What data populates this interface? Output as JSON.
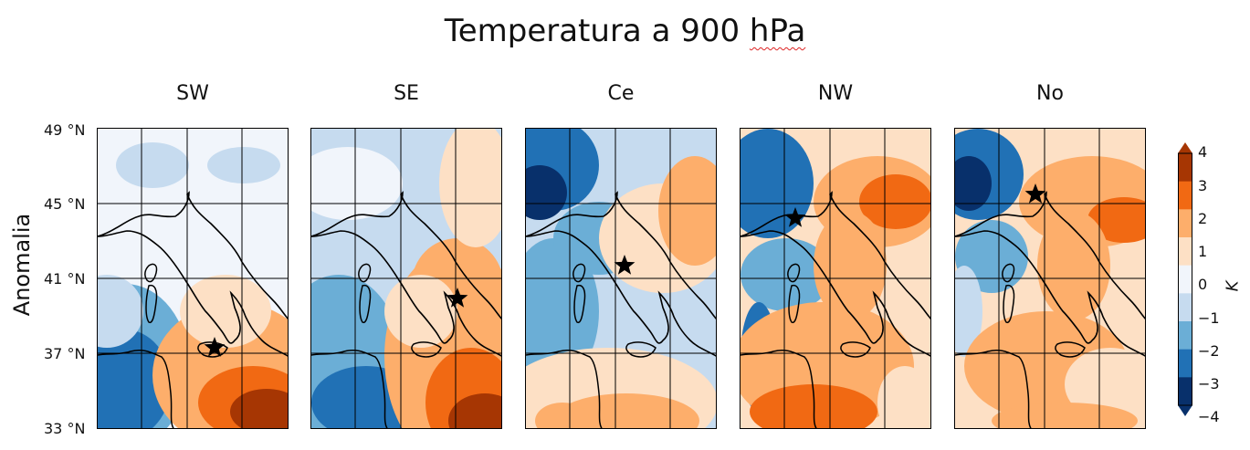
{
  "title_prefix": "Temperatura a 900 ",
  "title_unit": "hPa",
  "ylabel": "Anomalia",
  "lat_labels": [
    "49 °N",
    "45 °N",
    "41 °N",
    "37 °N",
    "33 °N"
  ],
  "colorbar": {
    "unit": "K",
    "ticks": [
      "4",
      "3",
      "2",
      "1",
      "0",
      "−1",
      "−2",
      "−3",
      "−4"
    ],
    "colors": [
      "#08306b",
      "#2171b5",
      "#6baed6",
      "#c6dbef",
      "#f1f5fb",
      "#fde0c5",
      "#fdae6b",
      "#f16913",
      "#a63603"
    ]
  },
  "panels": [
    {
      "label": "SW",
      "pattern": "sw"
    },
    {
      "label": "SE",
      "pattern": "se"
    },
    {
      "label": "Ce",
      "pattern": "ce"
    },
    {
      "label": "NW",
      "pattern": "nw"
    },
    {
      "label": "No",
      "pattern": "no"
    }
  ]
}
